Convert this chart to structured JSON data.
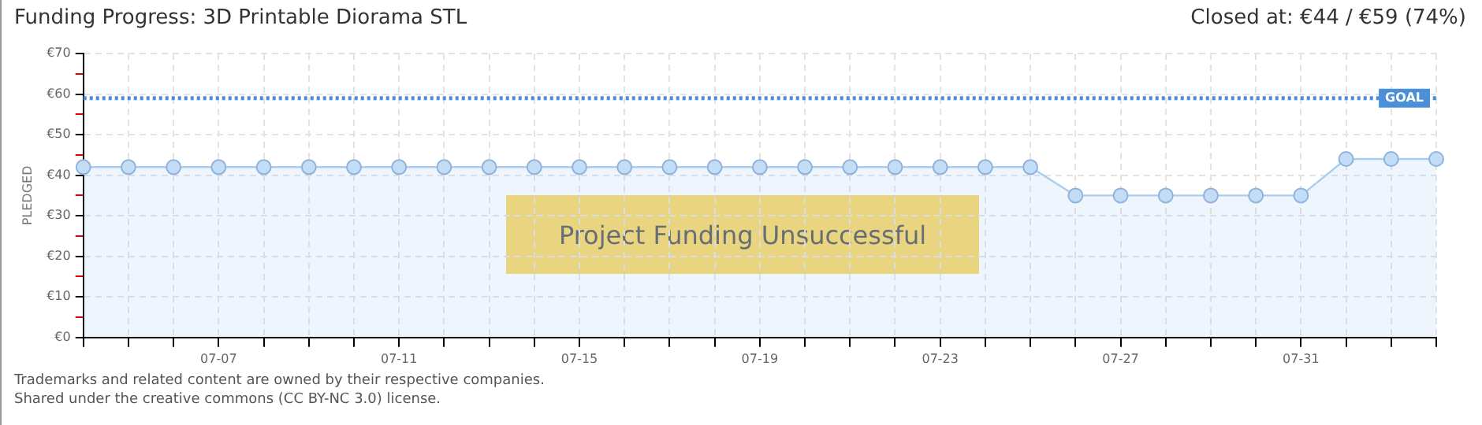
{
  "chart_data": {
    "type": "area",
    "title": "Funding Progress: 3D Printable Diorama STL",
    "subtitle": "Closed at: €44 /  €59 (74%)",
    "ylabel": "PLEDGED",
    "categories": [
      null,
      null,
      null,
      "07-07",
      null,
      null,
      null,
      "07-11",
      null,
      null,
      null,
      "07-15",
      null,
      null,
      null,
      "07-19",
      null,
      null,
      null,
      "07-23",
      null,
      null,
      null,
      "07-27",
      null,
      null,
      null,
      "07-31",
      null,
      null,
      null
    ],
    "series": [
      {
        "color": "#a9cdf2",
        "values": [
          42,
          42,
          42,
          42,
          42,
          42,
          42,
          42,
          42,
          42,
          42,
          42,
          42,
          42,
          42,
          42,
          42,
          42,
          42,
          42,
          42,
          42,
          35,
          35,
          35,
          35,
          35,
          35,
          44,
          44,
          44
        ]
      }
    ],
    "ylim": [
      0,
      70
    ],
    "yticks": [
      {
        "value": 0,
        "label": "€0"
      },
      {
        "value": 5,
        "label": null
      },
      {
        "value": 10,
        "label": "€10"
      },
      {
        "value": 15,
        "label": null
      },
      {
        "value": 20,
        "label": "€20"
      },
      {
        "value": 25,
        "label": null
      },
      {
        "value": 30,
        "label": "€30"
      },
      {
        "value": 35,
        "label": null
      },
      {
        "value": 40,
        "label": "€40"
      },
      {
        "value": 45,
        "label": null
      },
      {
        "value": 50,
        "label": "€50"
      },
      {
        "value": 55,
        "label": null
      },
      {
        "value": 60,
        "label": "€60"
      },
      {
        "value": 65,
        "label": null
      },
      {
        "value": 70,
        "label": "€70"
      }
    ],
    "ref_lines": [
      {
        "axis": "y",
        "value": 59,
        "label": "GOAL",
        "color": "#4a90d9",
        "line_style": "dotted"
      }
    ],
    "annotations": [
      "Project Funding Unsuccessful",
      "Trademarks and related content are owned by their respective companies.",
      "Shared under the creative commons (CC BY-NC 3.0) license."
    ],
    "grid": true,
    "legend": false,
    "marker": "circle",
    "line_style": "solid"
  }
}
